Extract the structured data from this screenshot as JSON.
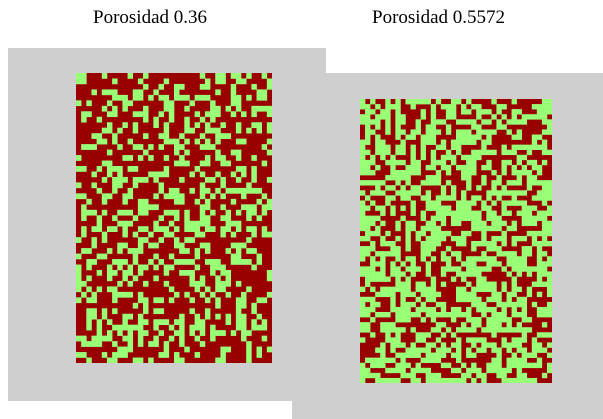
{
  "figures": [
    {
      "title": "Porosidad 0.36",
      "porosity": 0.36,
      "grid": {
        "cols": 38,
        "rows": 53,
        "seed": 12345
      }
    },
    {
      "title": "Porosidad 0.5572",
      "porosity": 0.5572,
      "grid": {
        "cols": 38,
        "rows": 56,
        "seed": 98765
      }
    }
  ],
  "colors": {
    "solid": "#990000",
    "pore": "#99ff77",
    "panel_background": "#cfcfcf",
    "page_background": "#ffffff"
  }
}
